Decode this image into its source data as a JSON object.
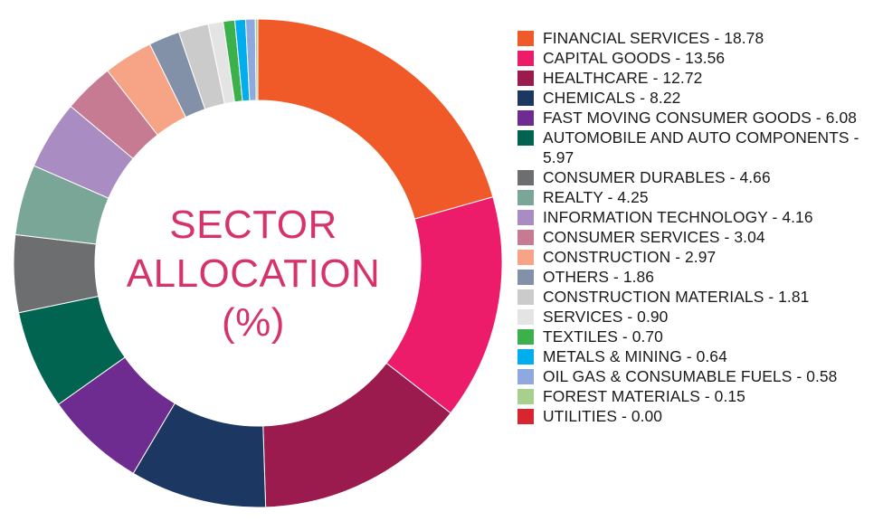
{
  "chart_data": {
    "type": "pie",
    "title": "SECTOR ALLOCATION (%)",
    "title_lines": [
      "SECTOR",
      "ALLOCATION",
      "(%)"
    ],
    "legend_position": "right",
    "series": [
      {
        "name": "FINANCIAL SERVICES",
        "value": 18.78,
        "color": "#f05a28",
        "label": "FINANCIAL SERVICES - 18.78"
      },
      {
        "name": "CAPITAL GOODS",
        "value": 13.56,
        "color": "#ec1c6b",
        "label": "CAPITAL GOODS - 13.56"
      },
      {
        "name": "HEALTHCARE",
        "value": 12.72,
        "color": "#9b1b4f",
        "label": "HEALTHCARE - 12.72"
      },
      {
        "name": "CHEMICALS",
        "value": 8.22,
        "color": "#1c3762",
        "label": "CHEMICALS - 8.22"
      },
      {
        "name": "FAST MOVING CONSUMER GOODS",
        "value": 6.08,
        "color": "#6e2c91",
        "label": "FAST MOVING CONSUMER GOODS - 6.08"
      },
      {
        "name": "AUTOMOBILE AND AUTO COMPONENTS",
        "value": 5.97,
        "color": "#006450",
        "label": "AUTOMOBILE AND AUTO COMPONENTS - 5.97"
      },
      {
        "name": "CONSUMER DURABLES",
        "value": 4.66,
        "color": "#6d6e70",
        "label": "CONSUMER DURABLES - 4.66"
      },
      {
        "name": "REALTY",
        "value": 4.25,
        "color": "#7aa698",
        "label": "REALTY - 4.25"
      },
      {
        "name": "INFORMATION TECHNOLOGY",
        "value": 4.16,
        "color": "#a98cc1",
        "label": "INFORMATION TECHNOLOGY - 4.16"
      },
      {
        "name": "CONSUMER SERVICES",
        "value": 3.04,
        "color": "#c67b93",
        "label": "CONSUMER SERVICES - 3.04"
      },
      {
        "name": "CONSTRUCTION",
        "value": 2.97,
        "color": "#f7a385",
        "label": "CONSTRUCTION - 2.97"
      },
      {
        "name": "OTHERS",
        "value": 1.86,
        "color": "#8290a8",
        "label": "OTHERS - 1.86"
      },
      {
        "name": "CONSTRUCTION MATERIALS",
        "value": 1.81,
        "color": "#cbcbcb",
        "label": "CONSTRUCTION MATERIALS - 1.81"
      },
      {
        "name": "SERVICES",
        "value": 0.9,
        "color": "#e4e4e4",
        "label": "SERVICES - 0.90"
      },
      {
        "name": "TEXTILES",
        "value": 0.7,
        "color": "#3cb14b",
        "label": "TEXTILES - 0.70"
      },
      {
        "name": "METALS & MINING",
        "value": 0.64,
        "color": "#00aeef",
        "label": "METALS & MINING - 0.64"
      },
      {
        "name": "OIL GAS & CONSUMABLE FUELS",
        "value": 0.58,
        "color": "#8fa9de",
        "label": "OIL GAS & CONSUMABLE FUELS - 0.58"
      },
      {
        "name": "FOREST MATERIALS",
        "value": 0.15,
        "color": "#a8d08d",
        "label": "FOREST MATERIALS - 0.15"
      },
      {
        "name": "UTILITIES",
        "value": 0.0,
        "color": "#d7262e",
        "label": "UTILITIES - 0.00"
      }
    ]
  }
}
